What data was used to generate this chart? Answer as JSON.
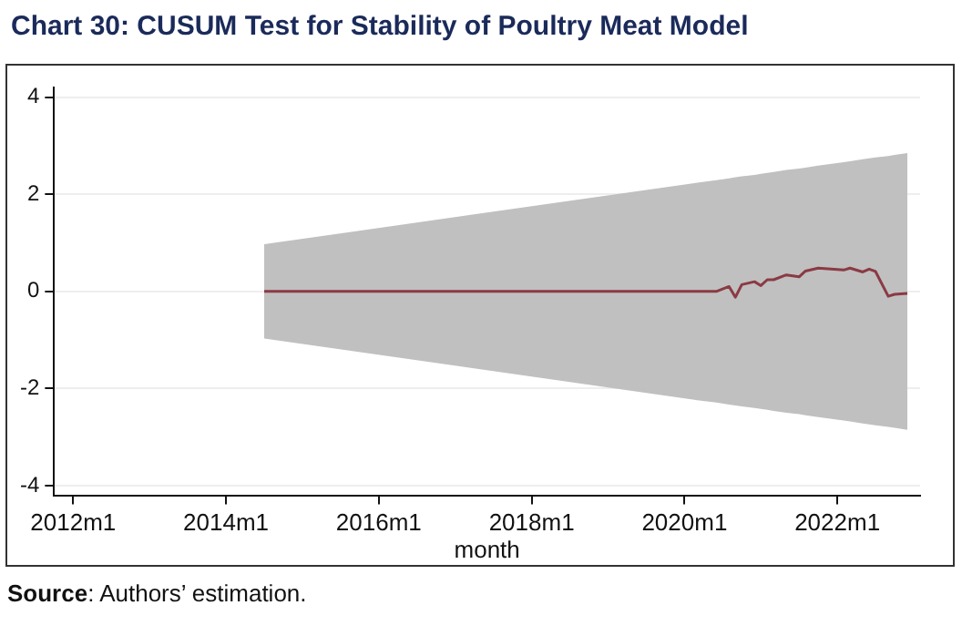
{
  "chart_data": {
    "type": "line",
    "title": "Chart 30: CUSUM Test for Stability of Poultry Meat Model",
    "xlabel": "month",
    "annotations": [
      "Source: Authors’ estimation."
    ],
    "xlim": [
      "2011-10",
      "2023-02"
    ],
    "xticks": [
      {
        "value": "2012-01",
        "label": "2012m1"
      },
      {
        "value": "2014-01",
        "label": "2014m1"
      },
      {
        "value": "2016-01",
        "label": "2016m1"
      },
      {
        "value": "2018-01",
        "label": "2018m1"
      },
      {
        "value": "2020-01",
        "label": "2020m1"
      },
      {
        "value": "2022-01",
        "label": "2022m1"
      }
    ],
    "ylim": [
      -4.2,
      4.2
    ],
    "yticks": [
      -4,
      -2,
      0,
      2,
      4
    ],
    "grid": "y",
    "legend": false,
    "series": [
      {
        "color": "#8b3a44",
        "x": [
          "2014-07",
          "2020-03",
          "2020-06",
          "2020-08",
          "2020-09",
          "2020-10",
          "2020-12",
          "2021-01",
          "2021-02",
          "2021-03",
          "2021-05",
          "2021-07",
          "2021-08",
          "2021-10",
          "2022-02",
          "2022-03",
          "2022-05",
          "2022-06",
          "2022-07",
          "2022-09",
          "2022-10",
          "2022-12"
        ],
        "values": [
          0,
          0,
          0,
          0.1,
          -0.12,
          0.14,
          0.2,
          0.12,
          0.24,
          0.24,
          0.34,
          0.3,
          0.42,
          0.48,
          0.44,
          0.48,
          0.4,
          0.46,
          0.41,
          -0.1,
          -0.06,
          -0.04
        ],
        "upper": [
          0.97,
          2.24,
          2.29,
          2.33,
          2.35,
          2.37,
          2.4,
          2.42,
          2.44,
          2.46,
          2.5,
          2.53,
          2.55,
          2.59,
          2.66,
          2.68,
          2.72,
          2.74,
          2.76,
          2.79,
          2.81,
          2.85
        ],
        "lower": [
          -0.97,
          -2.24,
          -2.29,
          -2.33,
          -2.35,
          -2.37,
          -2.4,
          -2.42,
          -2.44,
          -2.46,
          -2.5,
          -2.53,
          -2.55,
          -2.59,
          -2.66,
          -2.68,
          -2.72,
          -2.74,
          -2.76,
          -2.79,
          -2.81,
          -2.85
        ]
      }
    ]
  }
}
